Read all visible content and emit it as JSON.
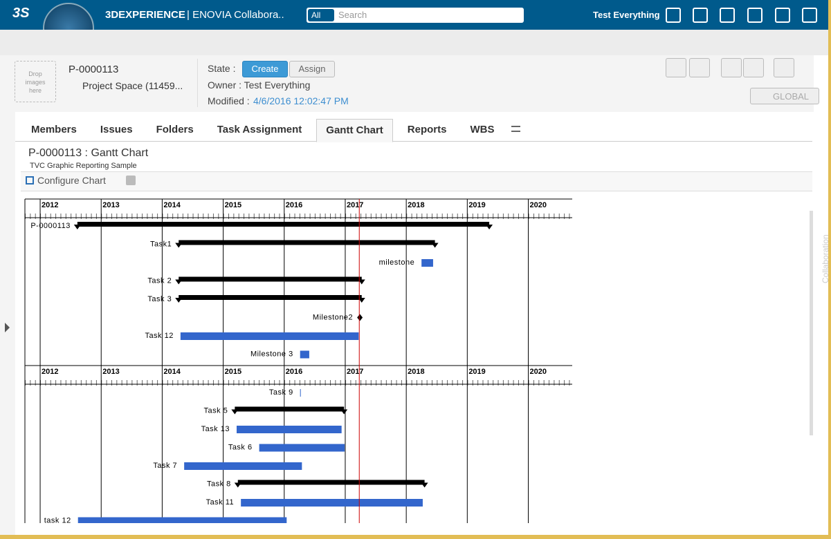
{
  "topbar": {
    "brand": "3DEXPERIENCE",
    "app": "| ENOVIA Collabora..",
    "search_scope": "All",
    "search_placeholder": "Search",
    "user": "Test Everything"
  },
  "object": {
    "drop": "Drop images here",
    "name": "P-0000113",
    "type": "Project Space (11459...",
    "state_label": "State :",
    "state_create": "Create",
    "state_assign": "Assign",
    "owner": "Owner : Test Everything",
    "modified_label": "Modified :",
    "modified": "4/6/2016 12:02:47 PM",
    "global": "GLOBAL"
  },
  "tabs": [
    "Members",
    "Issues",
    "Folders",
    "Task Assignment",
    "Gantt Chart",
    "Reports",
    "WBS"
  ],
  "active_tab": 4,
  "chart_header": {
    "title": "P-0000113 : Gantt Chart",
    "subtitle": "TVC Graphic Reporting Sample",
    "configure": "Configure Chart"
  },
  "side": "Collaboration",
  "gantt": {
    "xlim": [
      2011.75,
      2020.72
    ],
    "xticks": [
      2012,
      2013,
      2014,
      2015,
      2016,
      2017,
      2018,
      2019,
      2020
    ],
    "today": 2017.23,
    "panels": [
      {
        "tasks": [
          {
            "name": "P-0000113",
            "start": 2012.61,
            "end": 2019.36,
            "kind": "summary"
          },
          {
            "name": "Task1",
            "start": 2014.27,
            "end": 2018.47,
            "kind": "summary"
          },
          {
            "name": "milestone",
            "start": 2018.25,
            "end": 2018.44,
            "kind": "task"
          },
          {
            "name": "Task 2",
            "start": 2014.27,
            "end": 2017.27,
            "kind": "summary"
          },
          {
            "name": "Task 3",
            "start": 2014.27,
            "end": 2017.27,
            "kind": "summary"
          },
          {
            "name": "Milestone2",
            "start": 2017.24,
            "end": 2017.24,
            "kind": "milestone"
          },
          {
            "name": "Task 12",
            "start": 2014.3,
            "end": 2017.22,
            "kind": "task"
          },
          {
            "name": "Milestone 3",
            "start": 2016.26,
            "end": 2016.41,
            "kind": "task"
          }
        ]
      },
      {
        "tasks": [
          {
            "name": "Task 9",
            "start": 2016.26,
            "end": 2016.27,
            "kind": "task"
          },
          {
            "name": "Task 5",
            "start": 2015.19,
            "end": 2016.98,
            "kind": "summary"
          },
          {
            "name": "Task 13",
            "start": 2015.22,
            "end": 2016.94,
            "kind": "task"
          },
          {
            "name": "Task 6",
            "start": 2015.59,
            "end": 2016.99,
            "kind": "task"
          },
          {
            "name": "Task 7",
            "start": 2014.36,
            "end": 2016.29,
            "kind": "task"
          },
          {
            "name": "Task 8",
            "start": 2015.24,
            "end": 2018.3,
            "kind": "summary"
          },
          {
            "name": "Task 11",
            "start": 2015.29,
            "end": 2018.27,
            "kind": "task"
          },
          {
            "name": "task 12",
            "start": 2012.62,
            "end": 2016.04,
            "kind": "task"
          }
        ]
      }
    ]
  }
}
